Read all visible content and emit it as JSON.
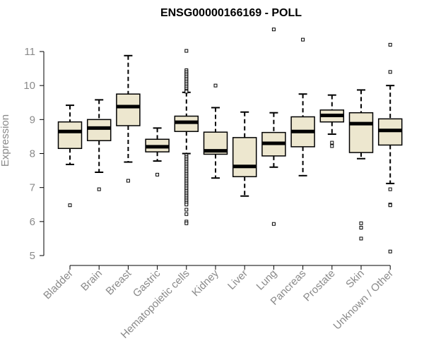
{
  "chart_data": {
    "type": "boxplot",
    "title": "ENSG00000166169 - POLL",
    "xlabel": "",
    "ylabel": "Expression",
    "ylim": [
      4.8,
      11.6
    ],
    "yticks": [
      5,
      6,
      7,
      8,
      9,
      10,
      11
    ],
    "box_color": "#ede7cf",
    "median_color": "#000000",
    "categories": [
      "Bladder",
      "Brain",
      "Breast",
      "Gastric",
      "Hematopoietic cells",
      "Kidney",
      "Liver",
      "Lung",
      "Pancreas",
      "Prostate",
      "Skin",
      "Unknown / Other"
    ],
    "boxes": [
      {
        "category": "Bladder",
        "whisker_low": 7.68,
        "q1": 8.15,
        "median": 8.65,
        "q3": 8.93,
        "whisker_high": 9.42,
        "outliers": [
          6.48
        ]
      },
      {
        "category": "Brain",
        "whisker_low": 7.45,
        "q1": 8.38,
        "median": 8.75,
        "q3": 9.0,
        "whisker_high": 9.58,
        "outliers": [
          6.95
        ]
      },
      {
        "category": "Breast",
        "whisker_low": 7.75,
        "q1": 8.82,
        "median": 9.38,
        "q3": 9.75,
        "whisker_high": 10.88,
        "outliers": [
          7.2
        ]
      },
      {
        "category": "Gastric",
        "whisker_low": 7.78,
        "q1": 8.05,
        "median": 8.2,
        "q3": 8.42,
        "whisker_high": 8.75,
        "outliers": [
          7.38
        ]
      },
      {
        "category": "Hematopoietic cells",
        "whisker_low": 8.0,
        "q1": 8.65,
        "median": 8.92,
        "q3": 9.1,
        "whisker_high": 9.8,
        "outliers": [
          11.02,
          10.45,
          10.4,
          10.35,
          10.3,
          10.25,
          10.2,
          10.15,
          10.1,
          10.05,
          10.0,
          9.95,
          9.9,
          9.85,
          9.82,
          7.95,
          7.9,
          7.85,
          7.8,
          7.75,
          7.7,
          7.65,
          7.6,
          7.55,
          7.5,
          7.45,
          7.4,
          7.35,
          7.3,
          7.25,
          7.2,
          7.15,
          7.1,
          7.05,
          7.0,
          6.95,
          6.9,
          6.85,
          6.8,
          6.75,
          6.7,
          6.65,
          6.6,
          6.55,
          6.5,
          6.35,
          6.22,
          6.0,
          5.95
        ]
      },
      {
        "category": "Kidney",
        "whisker_low": 7.28,
        "q1": 7.98,
        "median": 8.08,
        "q3": 8.63,
        "whisker_high": 9.35,
        "outliers": [
          10.0
        ]
      },
      {
        "category": "Liver",
        "whisker_low": 6.75,
        "q1": 7.32,
        "median": 7.62,
        "q3": 8.47,
        "whisker_high": 9.22,
        "outliers": []
      },
      {
        "category": "Lung",
        "whisker_low": 7.6,
        "q1": 7.93,
        "median": 8.3,
        "q3": 8.62,
        "whisker_high": 9.2,
        "outliers": [
          11.65,
          5.93
        ]
      },
      {
        "category": "Pancreas",
        "whisker_low": 7.35,
        "q1": 8.2,
        "median": 8.65,
        "q3": 9.08,
        "whisker_high": 9.75,
        "outliers": [
          11.35
        ]
      },
      {
        "category": "Prostate",
        "whisker_low": 8.57,
        "q1": 8.93,
        "median": 9.12,
        "q3": 9.28,
        "whisker_high": 9.72,
        "outliers": [
          8.32,
          8.22
        ]
      },
      {
        "category": "Skin",
        "whisker_low": 7.85,
        "q1": 8.03,
        "median": 8.88,
        "q3": 9.2,
        "whisker_high": 9.87,
        "outliers": [
          5.95,
          5.82,
          5.5
        ]
      },
      {
        "category": "Unknown / Other",
        "whisker_low": 7.12,
        "q1": 8.25,
        "median": 8.68,
        "q3": 9.02,
        "whisker_high": 10.0,
        "outliers": [
          11.2,
          10.4,
          6.95,
          6.5,
          6.48,
          5.12
        ]
      }
    ]
  }
}
